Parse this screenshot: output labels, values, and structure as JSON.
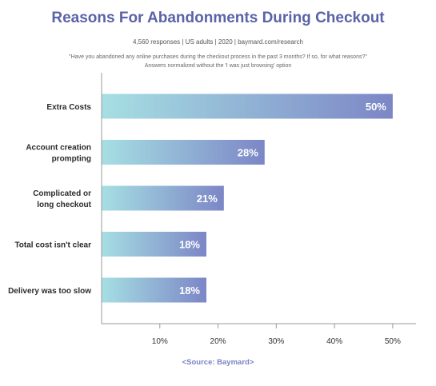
{
  "header": {
    "title": "Reasons For Abandonments During Checkout",
    "meta": "4,560 responses   |   US adults   |   2020   |   baymard.com/research",
    "question": "\"Have you abandoned any online purchases during the checkout process in the past 3 months? If so, for what reasons?\"",
    "note": "Answers normalized without the 'I was just browsing' option"
  },
  "source": "<Source: Baymard>",
  "chart_data": {
    "type": "bar",
    "orientation": "horizontal",
    "categories": [
      [
        "Extra Costs"
      ],
      [
        "Account creation",
        "prompting"
      ],
      [
        "Complicated or",
        "long checkout"
      ],
      [
        "Total cost isn't clear"
      ],
      [
        "Delivery was too slow"
      ]
    ],
    "values": [
      50,
      28,
      21,
      18,
      18
    ],
    "value_labels": [
      "50%",
      "28%",
      "21%",
      "18%",
      "18%"
    ],
    "xlim": [
      0,
      54
    ],
    "ticks": [
      10,
      20,
      30,
      40,
      50
    ],
    "tick_labels": [
      "10%",
      "20%",
      "30%",
      "40%",
      "50%"
    ],
    "grid": false,
    "colors": {
      "bar_start": "#a6dfe3",
      "bar_end": "#7c86c6",
      "axis": "#999999",
      "label": "#ffffff"
    }
  }
}
